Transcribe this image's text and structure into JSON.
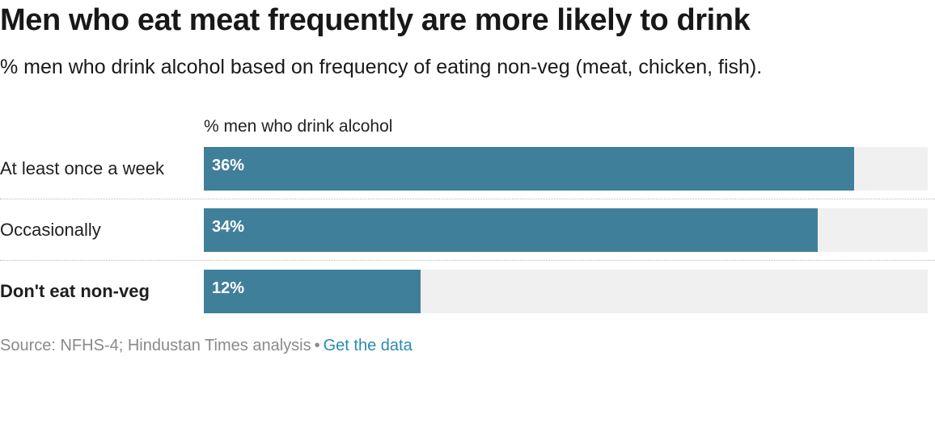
{
  "chart_data": {
    "type": "bar",
    "orientation": "horizontal",
    "title": "Men who eat meat frequently are more likely to drink",
    "subtitle": "% men who drink alcohol based on frequency of eating non-veg (meat, chicken, fish).",
    "value_header": "% men who drink alcohol",
    "categories": [
      "At least once a week",
      "Occasionally",
      "Don't eat non-veg"
    ],
    "values": [
      36,
      34,
      12
    ],
    "value_labels": [
      "36%",
      "34%",
      "12%"
    ],
    "bold_categories": [
      "Don't eat non-veg"
    ],
    "xlim": [
      0,
      40
    ],
    "grid": false,
    "bar_color": "#407f9a",
    "track_color": "#f0f0f0"
  },
  "footer": {
    "source": "Source: NFHS-4; Hindustan Times analysis",
    "separator": "•",
    "link_label": "Get the data",
    "link_color": "#2a8ab0"
  }
}
